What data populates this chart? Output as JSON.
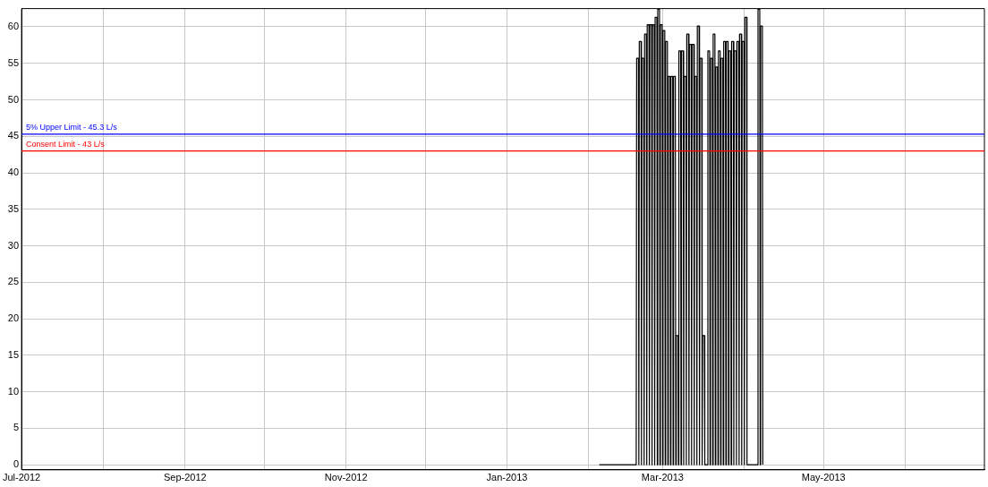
{
  "chart_data": {
    "type": "line",
    "xlim": [
      "2012-07-01",
      "2013-07-01"
    ],
    "xticks": [
      {
        "value": "2012-07-01",
        "label": "Jul-2012"
      },
      {
        "value": "2012-08-01",
        "label": null
      },
      {
        "value": "2012-09-01",
        "label": "Sep-2012"
      },
      {
        "value": "2012-10-01",
        "label": null
      },
      {
        "value": "2012-11-01",
        "label": "Nov-2012"
      },
      {
        "value": "2012-12-01",
        "label": null
      },
      {
        "value": "2013-01-01",
        "label": "Jan-2013"
      },
      {
        "value": "2013-02-01",
        "label": null
      },
      {
        "value": "2013-03-01",
        "label": "Mar-2013"
      },
      {
        "value": "2013-04-01",
        "label": null
      },
      {
        "value": "2013-05-01",
        "label": "May-2013"
      },
      {
        "value": "2013-06-01",
        "label": null
      }
    ],
    "ylim": [
      -0.7,
      62.5
    ],
    "yticks": [
      0,
      5,
      10,
      15,
      20,
      25,
      30,
      35,
      40,
      45,
      50,
      55,
      60
    ],
    "grid": true,
    "marker": "none",
    "line_style": "solid",
    "legend": false,
    "x": [
      "2013-02-05",
      "2013-02-19",
      "2013-02-19T04:00",
      "2013-02-19T20:00",
      "2013-02-20",
      "2013-02-20T04:00",
      "2013-02-20T20:00",
      "2013-02-21",
      "2013-02-21T04:00",
      "2013-02-21T20:00",
      "2013-02-22",
      "2013-02-22T04:00",
      "2013-02-22T20:00",
      "2013-02-23",
      "2013-02-23T04:00",
      "2013-02-23T20:00",
      "2013-02-24",
      "2013-02-24T04:00",
      "2013-02-24T20:00",
      "2013-02-25",
      "2013-02-25T04:00",
      "2013-02-25T20:00",
      "2013-02-26",
      "2013-02-26T04:00",
      "2013-02-26T20:00",
      "2013-02-27",
      "2013-02-27T04:00",
      "2013-02-27T20:00",
      "2013-02-28",
      "2013-02-28T04:00",
      "2013-02-28T20:00",
      "2013-03-01",
      "2013-03-01T04:00",
      "2013-03-01T20:00",
      "2013-03-02",
      "2013-03-02T04:00",
      "2013-03-02T20:00",
      "2013-03-03",
      "2013-03-03T04:00",
      "2013-03-03T20:00",
      "2013-03-04",
      "2013-03-04T04:00",
      "2013-03-04T20:00",
      "2013-03-05",
      "2013-03-05T04:00",
      "2013-03-05T20:00",
      "2013-03-06",
      "2013-03-06T04:00",
      "2013-03-06T20:00",
      "2013-03-07",
      "2013-03-07T04:00",
      "2013-03-07T20:00",
      "2013-03-08",
      "2013-03-08T04:00",
      "2013-03-08T20:00",
      "2013-03-09",
      "2013-03-09T04:00",
      "2013-03-09T20:00",
      "2013-03-10",
      "2013-03-10T04:00",
      "2013-03-10T20:00",
      "2013-03-11",
      "2013-03-11T04:00",
      "2013-03-11T20:00",
      "2013-03-12",
      "2013-03-12T04:00",
      "2013-03-12T20:00",
      "2013-03-13",
      "2013-03-13T04:00",
      "2013-03-13T20:00",
      "2013-03-14",
      "2013-03-14T04:00",
      "2013-03-14T20:00",
      "2013-03-15",
      "2013-03-15T04:00",
      "2013-03-15T20:00",
      "2013-03-16",
      "2013-03-16T04:00",
      "2013-03-16T20:00",
      "2013-03-17",
      "2013-03-18",
      "2013-03-18T04:00",
      "2013-03-18T20:00",
      "2013-03-19",
      "2013-03-19T04:00",
      "2013-03-19T20:00",
      "2013-03-20",
      "2013-03-20T04:00",
      "2013-03-20T20:00",
      "2013-03-21",
      "2013-03-21T04:00",
      "2013-03-21T20:00",
      "2013-03-22",
      "2013-03-22T04:00",
      "2013-03-22T20:00",
      "2013-03-23",
      "2013-03-23T04:00",
      "2013-03-23T20:00",
      "2013-03-24",
      "2013-03-24T04:00",
      "2013-03-24T20:00",
      "2013-03-25",
      "2013-03-25T04:00",
      "2013-03-25T20:00",
      "2013-03-26",
      "2013-03-26T04:00",
      "2013-03-26T20:00",
      "2013-03-27",
      "2013-03-27T04:00",
      "2013-03-27T20:00",
      "2013-03-28",
      "2013-03-28T04:00",
      "2013-03-28T20:00",
      "2013-03-29",
      "2013-03-29T04:00",
      "2013-03-29T20:00",
      "2013-03-30",
      "2013-03-30T04:00",
      "2013-03-30T20:00",
      "2013-03-31",
      "2013-03-31T04:00",
      "2013-03-31T20:00",
      "2013-04-01",
      "2013-04-01T04:00",
      "2013-04-01T20:00",
      "2013-04-02",
      "2013-04-06",
      "2013-04-06T04:00",
      "2013-04-06T20:00",
      "2013-04-07",
      "2013-04-07T04:00",
      "2013-04-07T20:00",
      "2013-04-08"
    ],
    "series": [
      {
        "color": "#000000",
        "values": [
          0,
          0,
          55.7,
          55.7,
          0,
          58,
          58,
          0,
          55.7,
          55.7,
          0,
          59,
          59,
          0,
          60.3,
          60.3,
          0,
          60.3,
          60.3,
          0,
          60.3,
          60.3,
          0,
          61.3,
          61.3,
          0,
          62.4,
          62.4,
          0,
          60.3,
          60.3,
          0,
          59.5,
          59.5,
          0,
          58,
          58,
          0,
          53.2,
          53.2,
          0,
          53.2,
          53.2,
          0,
          53.2,
          53.2,
          0,
          17.7,
          17.7,
          0,
          56.7,
          56.7,
          0,
          56.7,
          56.7,
          0,
          53.2,
          53.2,
          0,
          59,
          59,
          0,
          57.6,
          57.6,
          0,
          57.6,
          57.6,
          0,
          53.2,
          53.2,
          0,
          60.1,
          60.1,
          0,
          55.7,
          55.7,
          0,
          17.7,
          17.7,
          0,
          0,
          56.7,
          56.7,
          0,
          55.7,
          55.7,
          0,
          59,
          59,
          0,
          54.5,
          54.5,
          0,
          56.7,
          56.7,
          0,
          55.7,
          55.7,
          0,
          58,
          58,
          0,
          58,
          58,
          0,
          56.7,
          56.7,
          0,
          58,
          58,
          0,
          56.7,
          56.7,
          0,
          58,
          58,
          0,
          59,
          59,
          0,
          58,
          58,
          0,
          61.3,
          61.3,
          0,
          0,
          62.4,
          62.4,
          0,
          60.1,
          60.1,
          0
        ]
      }
    ],
    "ref_lines": [
      {
        "axis": "y",
        "value": 45.3,
        "label": "5% Upper Limit - 45.3 L/s",
        "color": "#0000ff"
      },
      {
        "axis": "y",
        "value": 43,
        "label": "Consent Limit - 43 L/s",
        "color": "#ff0000"
      }
    ]
  }
}
